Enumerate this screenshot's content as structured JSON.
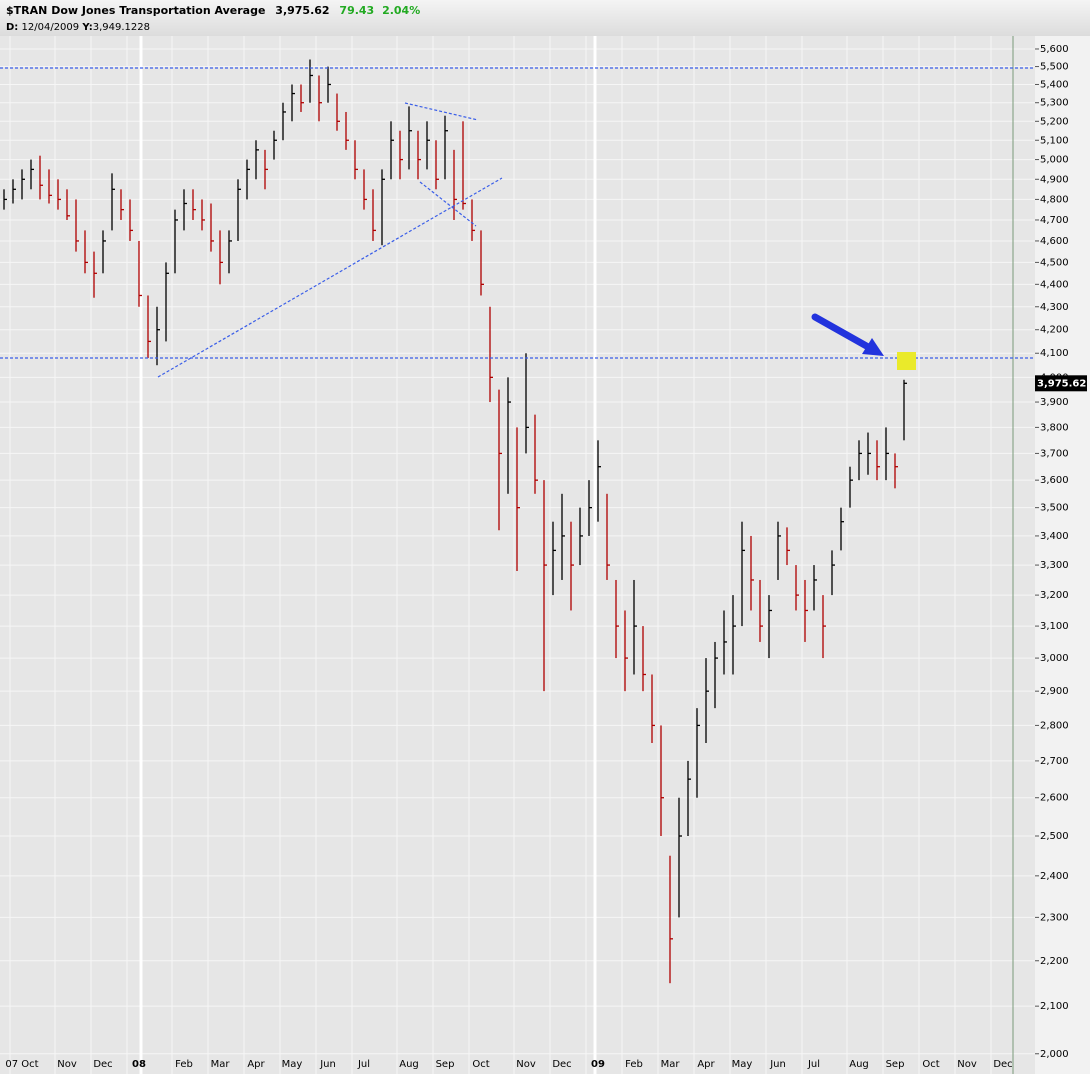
{
  "header": {
    "symbol": "$TRAN",
    "name": "Dow Jones Transportation Average",
    "last": "3,975.62",
    "change": "79.43",
    "change_pct": "2.04%",
    "cursor_date_key": "D:",
    "cursor_date": "12/04/2009",
    "cursor_y_key": "Y:",
    "cursor_y": "3,949.1228"
  },
  "chart_data": {
    "type": "ohlc",
    "log_scale": true,
    "grid": true,
    "up_color": "#000000",
    "down_color": "#b00000",
    "categories": [
      null,
      null,
      "07 Oct",
      null,
      null,
      null,
      null,
      "Nov",
      null,
      null,
      null,
      "Dec",
      null,
      null,
      null,
      "08",
      null,
      null,
      null,
      null,
      "Feb",
      null,
      null,
      null,
      "Mar",
      null,
      null,
      null,
      "Apr",
      null,
      null,
      null,
      "May",
      null,
      null,
      null,
      "Jun",
      null,
      null,
      null,
      "Jul",
      null,
      null,
      null,
      null,
      "Aug",
      null,
      null,
      null,
      "Sep",
      null,
      null,
      null,
      "Oct",
      null,
      null,
      null,
      null,
      "Nov",
      null,
      null,
      null,
      "Dec",
      null,
      null,
      null,
      "09",
      null,
      null,
      null,
      "Feb",
      null,
      null,
      null,
      "Mar",
      null,
      null,
      null,
      "Apr",
      null,
      null,
      null,
      "May",
      null,
      null,
      null,
      "Jun",
      null,
      null,
      null,
      "Jul",
      null,
      null,
      null,
      null,
      "Aug",
      null,
      null,
      null,
      "Sep",
      null,
      null,
      null,
      "Oct",
      null,
      null,
      null,
      "Nov",
      null,
      null,
      null,
      "Dec",
      null,
      null,
      null
    ],
    "high": [
      4850,
      4900,
      4950,
      5000,
      5020,
      4950,
      4900,
      4850,
      4800,
      4650,
      4550,
      4650,
      4930,
      4850,
      4800,
      4600,
      4350,
      4300,
      4500,
      4750,
      4850,
      4850,
      4800,
      4780,
      4650,
      4650,
      4900,
      5000,
      5100,
      5050,
      5150,
      5300,
      5400,
      5400,
      5540,
      5450,
      5500,
      5350,
      5250,
      5100,
      4950,
      4850,
      4950,
      5200,
      5150,
      5280,
      5150,
      5200,
      5100,
      5230,
      5050,
      5200,
      4800,
      4650,
      4300,
      3950,
      4000,
      3800,
      4100,
      3850,
      3600,
      3450,
      3550,
      3450,
      3500,
      3600,
      3750,
      3550,
      3250,
      3150,
      3250,
      3100,
      2950,
      2800,
      2450,
      2600,
      2700,
      2850,
      3000,
      3050,
      3150,
      3200,
      3450,
      3400,
      3250,
      3200,
      3450,
      3430,
      3300,
      3250,
      3300,
      3200,
      3350,
      3500,
      3650,
      3750,
      3780,
      3750,
      3800,
      3700,
      3990,
      null,
      null,
      null,
      null,
      null,
      null,
      null,
      null,
      null,
      null,
      null,
      null,
      null,
      null
    ],
    "low": [
      4750,
      4780,
      4800,
      4850,
      4800,
      4780,
      4750,
      4700,
      4550,
      4450,
      4340,
      4450,
      4650,
      4700,
      4600,
      4300,
      4080,
      4050,
      4150,
      4450,
      4650,
      4700,
      4650,
      4550,
      4400,
      4450,
      4600,
      4800,
      4900,
      4850,
      5000,
      5100,
      5200,
      5250,
      5300,
      5200,
      5300,
      5150,
      5050,
      4900,
      4750,
      4600,
      4580,
      4900,
      4900,
      4950,
      4900,
      4950,
      4850,
      4900,
      4700,
      4750,
      4600,
      4350,
      3900,
      3420,
      3550,
      3280,
      3700,
      3550,
      2900,
      3200,
      3250,
      3150,
      3300,
      3400,
      3450,
      3250,
      3000,
      2900,
      2950,
      2900,
      2750,
      2500,
      2150,
      2300,
      2500,
      2600,
      2750,
      2850,
      2950,
      2950,
      3100,
      3150,
      3050,
      3000,
      3250,
      3300,
      3150,
      3050,
      3150,
      3000,
      3200,
      3350,
      3500,
      3600,
      3620,
      3600,
      3600,
      3570,
      3750,
      null,
      null,
      null,
      null,
      null,
      null,
      null,
      null,
      null,
      null,
      null,
      null,
      null,
      null
    ],
    "close": [
      4800,
      4850,
      4900,
      4950,
      4870,
      4820,
      4800,
      4720,
      4600,
      4500,
      4450,
      4600,
      4850,
      4750,
      4650,
      4350,
      4150,
      4200,
      4450,
      4700,
      4780,
      4750,
      4700,
      4600,
      4500,
      4600,
      4850,
      4950,
      5050,
      4950,
      5100,
      5250,
      5350,
      5300,
      5450,
      5300,
      5400,
      5200,
      5100,
      4950,
      4800,
      4650,
      4900,
      5100,
      5000,
      5150,
      5000,
      5100,
      4900,
      5150,
      4800,
      4780,
      4650,
      4400,
      4000,
      3700,
      3900,
      3500,
      3800,
      3600,
      3300,
      3350,
      3400,
      3300,
      3400,
      3500,
      3650,
      3300,
      3100,
      3000,
      3100,
      2950,
      2800,
      2600,
      2250,
      2500,
      2650,
      2800,
      2900,
      3000,
      3050,
      3100,
      3350,
      3250,
      3100,
      3150,
      3400,
      3350,
      3200,
      3150,
      3250,
      3100,
      3300,
      3450,
      3600,
      3700,
      3700,
      3650,
      3700,
      3650,
      3975.62,
      null,
      null,
      null,
      null,
      null,
      null,
      null,
      null,
      null,
      null,
      null,
      null,
      null,
      null
    ],
    "ylim": [
      1967,
      5675
    ],
    "yticks": [
      {
        "value": 2000,
        "label": "2,000"
      },
      {
        "value": 2100,
        "label": "2,100"
      },
      {
        "value": 2200,
        "label": "2,200"
      },
      {
        "value": 2300,
        "label": "2,300"
      },
      {
        "value": 2400,
        "label": "2,400"
      },
      {
        "value": 2500,
        "label": "2,500"
      },
      {
        "value": 2600,
        "label": "2,600"
      },
      {
        "value": 2700,
        "label": "2,700"
      },
      {
        "value": 2800,
        "label": "2,800"
      },
      {
        "value": 2900,
        "label": "2,900"
      },
      {
        "value": 3000,
        "label": "3,000"
      },
      {
        "value": 3100,
        "label": "3,100"
      },
      {
        "value": 3200,
        "label": "3,200"
      },
      {
        "value": 3300,
        "label": "3,300"
      },
      {
        "value": 3400,
        "label": "3,400"
      },
      {
        "value": 3500,
        "label": "3,500"
      },
      {
        "value": 3600,
        "label": "3,600"
      },
      {
        "value": 3700,
        "label": "3,700"
      },
      {
        "value": 3800,
        "label": "3,800"
      },
      {
        "value": 3900,
        "label": "3,900"
      },
      {
        "value": 4000,
        "label": "4,000"
      },
      {
        "value": 4100,
        "label": "4,100"
      },
      {
        "value": 4200,
        "label": "4,200"
      },
      {
        "value": 4300,
        "label": "4,300"
      },
      {
        "value": 4400,
        "label": "4,400"
      },
      {
        "value": 4500,
        "label": "4,500"
      },
      {
        "value": 4600,
        "label": "4,600"
      },
      {
        "value": 4700,
        "label": "4,700"
      },
      {
        "value": 4800,
        "label": "4,800"
      },
      {
        "value": 4900,
        "label": "4,900"
      },
      {
        "value": 5000,
        "label": "5,000"
      },
      {
        "value": 5100,
        "label": "5,100"
      },
      {
        "value": 5200,
        "label": "5,200"
      },
      {
        "value": 5300,
        "label": "5,300"
      },
      {
        "value": 5400,
        "label": "5,400"
      },
      {
        "value": 5500,
        "label": "5,500"
      },
      {
        "value": 5600,
        "label": "5,600"
      }
    ]
  }
}
